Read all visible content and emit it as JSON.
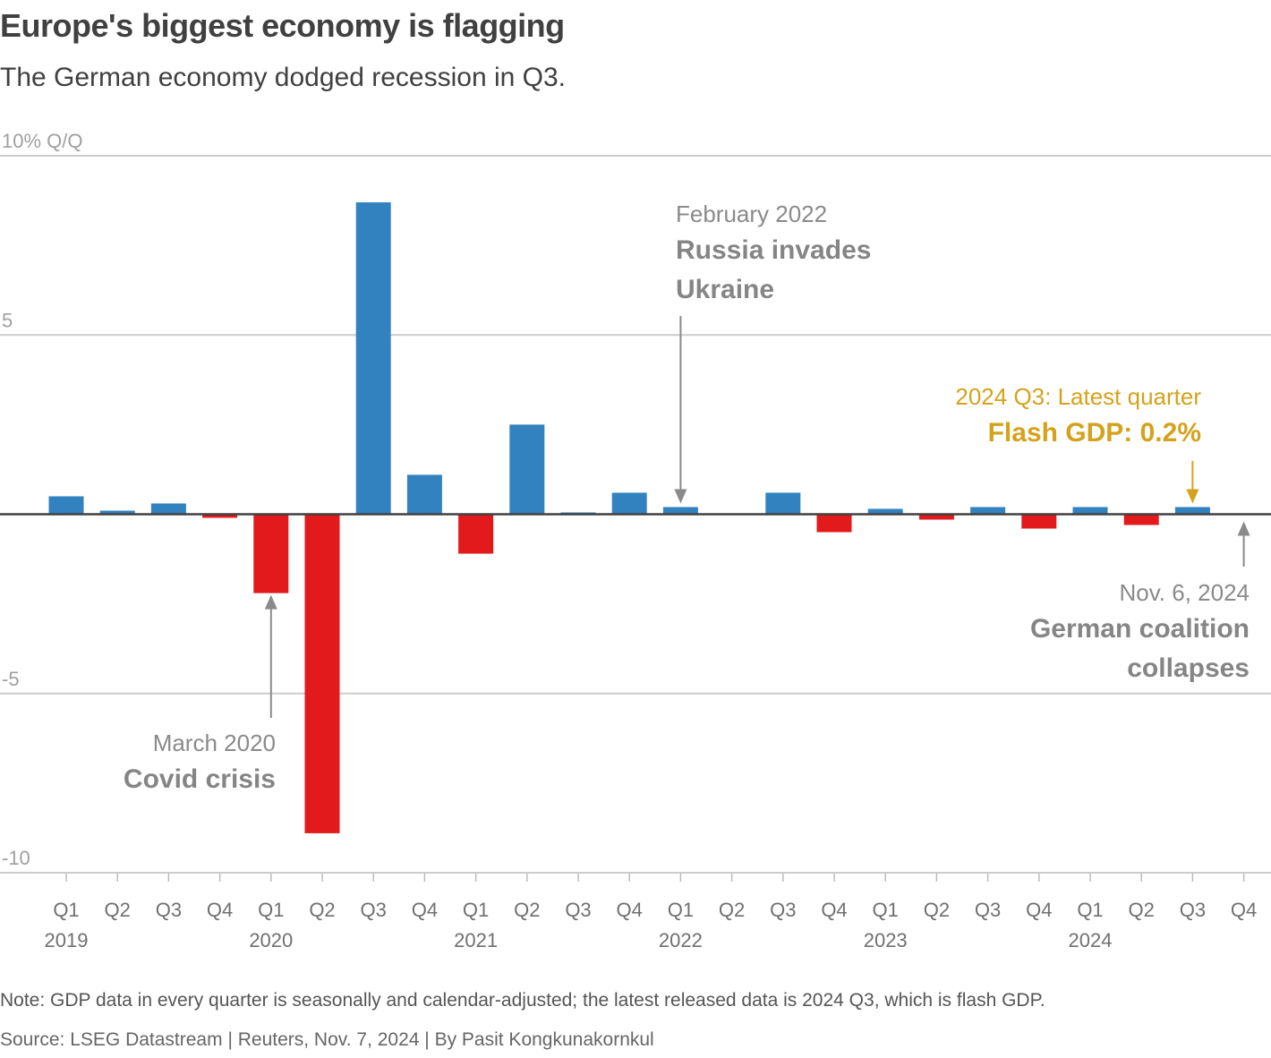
{
  "header": {
    "title": "Europe's biggest economy is flagging",
    "subtitle": "The German economy dodged recession in Q3."
  },
  "footer": {
    "note": "Note: GDP data in every quarter is seasonally and calendar-adjusted; the latest released data is 2024 Q3, which is flash GDP.",
    "source": "Source: LSEG Datastream | Reuters, Nov. 7, 2024 | By Pasit Kongkunakornkul"
  },
  "colors": {
    "positive": "#3282bf",
    "negative": "#e31a1c",
    "highlight": "#d4a21c",
    "annotation": "#8a8a8a"
  },
  "chart_data": {
    "type": "bar",
    "title": "Europe's biggest economy is flagging",
    "subtitle": "The German economy dodged recession in Q3.",
    "ylabel": "% Q/Q",
    "xlabel": "",
    "ylim": [
      -10,
      10
    ],
    "yticks": [
      10,
      5,
      0,
      -5,
      -10
    ],
    "ytick_labels": [
      "10% Q/Q",
      "5",
      "",
      "-5",
      "-10"
    ],
    "grid": true,
    "categories": [
      "Q1",
      "Q2",
      "Q3",
      "Q4",
      "Q1",
      "Q2",
      "Q3",
      "Q4",
      "Q1",
      "Q2",
      "Q3",
      "Q4",
      "Q1",
      "Q2",
      "Q3",
      "Q4",
      "Q1",
      "Q2",
      "Q3",
      "Q4",
      "Q1",
      "Q2",
      "Q3",
      "Q4"
    ],
    "years": [
      {
        "label": "2019",
        "index": 0
      },
      {
        "label": "2020",
        "index": 4
      },
      {
        "label": "2021",
        "index": 8
      },
      {
        "label": "2022",
        "index": 12
      },
      {
        "label": "2023",
        "index": 16
      },
      {
        "label": "2024",
        "index": 20
      }
    ],
    "values": [
      0.5,
      0.1,
      0.3,
      -0.1,
      -2.2,
      -8.9,
      8.7,
      1.1,
      -1.1,
      2.5,
      0.05,
      0.6,
      0.2,
      0.0,
      0.6,
      -0.5,
      0.15,
      -0.15,
      0.2,
      -0.4,
      0.2,
      -0.3,
      0.2,
      null
    ],
    "annotations": [
      {
        "date": "March 2020",
        "lines": [
          "Covid crisis"
        ],
        "index": 4,
        "direction": "up",
        "style": "grey"
      },
      {
        "date": "February 2022",
        "lines": [
          "Russia invades",
          "Ukraine"
        ],
        "index": 12,
        "direction": "down",
        "style": "grey"
      },
      {
        "date": "2024 Q3: Latest quarter",
        "lines": [
          "Flash GDP: 0.2%"
        ],
        "index": 22,
        "direction": "down",
        "style": "gold"
      },
      {
        "date": "Nov. 6, 2024",
        "lines": [
          "German coalition",
          "collapses"
        ],
        "index": 23,
        "direction": "up",
        "style": "grey"
      }
    ]
  }
}
